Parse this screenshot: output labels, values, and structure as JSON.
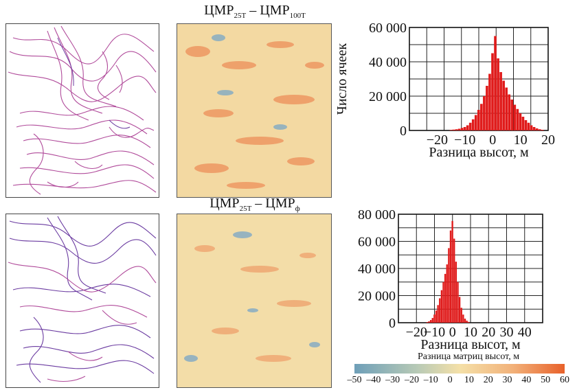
{
  "panels": {
    "top_title": {
      "main1": "ЦМР",
      "sub1": "25Т",
      "mid": " – ЦМР",
      "sub2": "100Т"
    },
    "bottom_title": {
      "main1": "ЦМР",
      "sub1": "25Т",
      "mid": " – ЦМР",
      "sub2": "ф"
    }
  },
  "colors": {
    "contour_line": "#b04a9a",
    "contour_line_2": "#6a3aa0",
    "diff_base": "#f3d9a2",
    "diff_pos": "#ec8a55",
    "diff_neg": "#7fa9c4",
    "bar": "#e01b1b",
    "colorbar_start": "#6e9fb8",
    "colorbar_mid": "#f4e0a8",
    "colorbar_end": "#e8612a"
  },
  "chart_data": [
    {
      "type": "bar",
      "ylabel": "Число ячеек",
      "xlabel": "Разница высот, м",
      "xlim": [
        -30,
        20
      ],
      "ylim": [
        0,
        60000
      ],
      "xticks": [
        "-20",
        "-10",
        "0",
        "10",
        "20"
      ],
      "xtick_values": [
        -20,
        -10,
        0,
        10,
        20
      ],
      "yticks": [
        "0",
        "20 000",
        "40 000",
        "60 000"
      ],
      "ytick_values": [
        0,
        20000,
        40000,
        60000
      ],
      "grid": true,
      "x": [
        -15,
        -14,
        -13,
        -12,
        -11,
        -10,
        -9,
        -8,
        -7,
        -6,
        -5,
        -4,
        -3,
        -2,
        -1,
        0,
        1,
        2,
        3,
        4,
        5,
        6,
        7,
        8,
        9,
        10,
        11,
        12,
        13,
        14,
        15,
        16,
        17,
        18
      ],
      "values": [
        300,
        500,
        700,
        1000,
        1500,
        2000,
        3000,
        4500,
        6500,
        9000,
        12000,
        15500,
        20000,
        26000,
        33000,
        45000,
        55000,
        42000,
        34000,
        29000,
        25000,
        21000,
        18000,
        15000,
        12500,
        10000,
        8000,
        6000,
        4500,
        3000,
        2000,
        1200,
        700,
        400
      ]
    },
    {
      "type": "bar",
      "ylabel": "Число ячеек",
      "xlabel": "Разница высот, м",
      "xlim": [
        -30,
        50
      ],
      "ylim": [
        0,
        80000
      ],
      "xticks": [
        "-20",
        "-10",
        "0",
        "10",
        "20",
        "30",
        "40"
      ],
      "xtick_values": [
        -20,
        -10,
        0,
        10,
        20,
        30,
        40
      ],
      "yticks": [
        "0",
        "20 000",
        "40 000",
        "60 000",
        "80 000"
      ],
      "ytick_values": [
        0,
        20000,
        40000,
        60000,
        80000
      ],
      "grid": true,
      "x": [
        -14,
        -13,
        -12,
        -11,
        -10,
        -9,
        -8,
        -7,
        -6,
        -5,
        -4,
        -3,
        -2,
        -1,
        0,
        1,
        2,
        3,
        4,
        5,
        6,
        7,
        8,
        9
      ],
      "values": [
        500,
        1000,
        2000,
        3500,
        6000,
        9000,
        13000,
        18000,
        24000,
        30000,
        36000,
        43000,
        55000,
        68000,
        75000,
        62000,
        45000,
        30000,
        19000,
        11000,
        6000,
        3000,
        1500,
        600
      ]
    }
  ],
  "colorbar": {
    "label": "Разница матриц высот, м",
    "ticks": [
      "–50",
      "–40",
      "–30",
      "–20",
      "–10",
      "0",
      "10",
      "20",
      "30",
      "40",
      "50",
      "60"
    ]
  }
}
